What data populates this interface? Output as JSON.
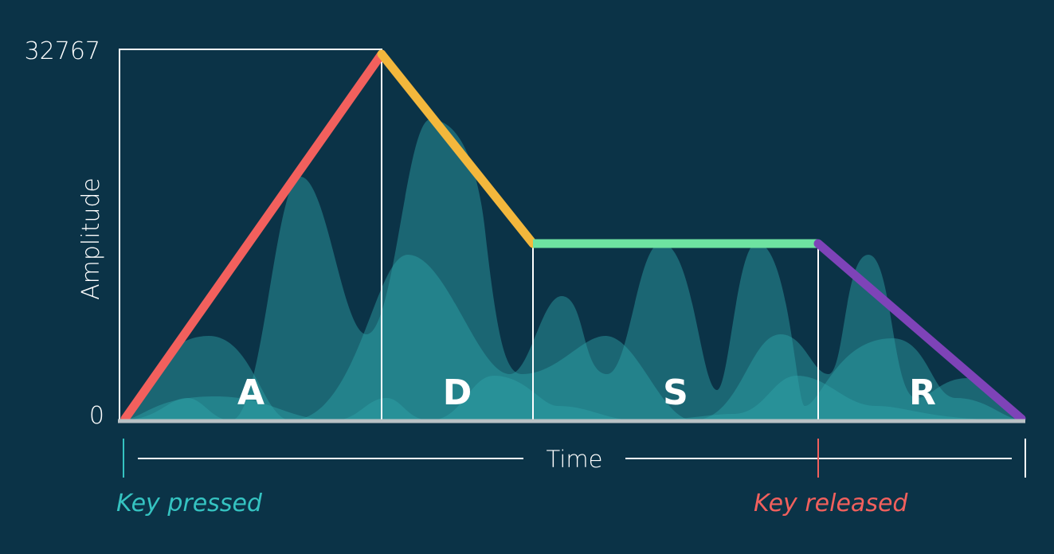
{
  "axis": {
    "y_label": "Amplitude",
    "y_max_label": "32767",
    "y_min_label": "0",
    "x_label": "Time"
  },
  "phases": [
    {
      "id": "attack",
      "letter": "A",
      "color": "#f2605d"
    },
    {
      "id": "decay",
      "letter": "D",
      "color": "#f3b73c"
    },
    {
      "id": "sustain",
      "letter": "S",
      "color": "#6ee3a1"
    },
    {
      "id": "release",
      "letter": "R",
      "color": "#7e43b8"
    }
  ],
  "events": {
    "key_pressed": {
      "label": "Key pressed",
      "color": "#35c3c1"
    },
    "key_released": {
      "label": "Key released",
      "color": "#f2605d"
    }
  },
  "colors": {
    "background": "#0b3347",
    "wave_fill": "#2fa3a8",
    "frame": "#ffffff",
    "baseline": "#b9c2c5"
  }
}
